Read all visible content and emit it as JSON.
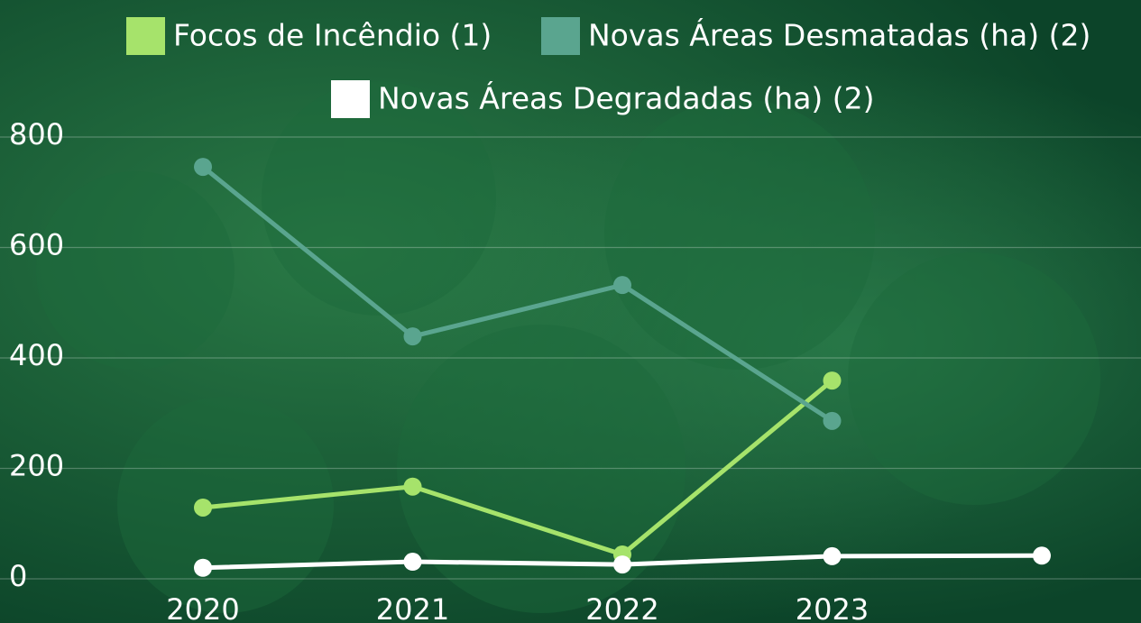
{
  "chart_data": {
    "type": "line",
    "categories": [
      "2020",
      "2021",
      "2022",
      "2023",
      null
    ],
    "series": [
      {
        "name": "Focos de Incêndio (1)",
        "color": "#a6e36b",
        "values": [
          129,
          167,
          44,
          359,
          null
        ]
      },
      {
        "name": "Novas Áreas Desmatadas (ha) (2)",
        "color": "#5aa58f",
        "values": [
          746,
          439,
          532,
          286,
          null
        ]
      },
      {
        "name": "Novas Áreas Degradadas (ha) (2)",
        "color": "#ffffff",
        "values": [
          20,
          31,
          26,
          41,
          42
        ]
      }
    ],
    "ylim": [
      0,
      800
    ],
    "yticks": [
      0,
      200,
      400,
      600,
      800
    ],
    "grid": true,
    "legend": "top"
  }
}
